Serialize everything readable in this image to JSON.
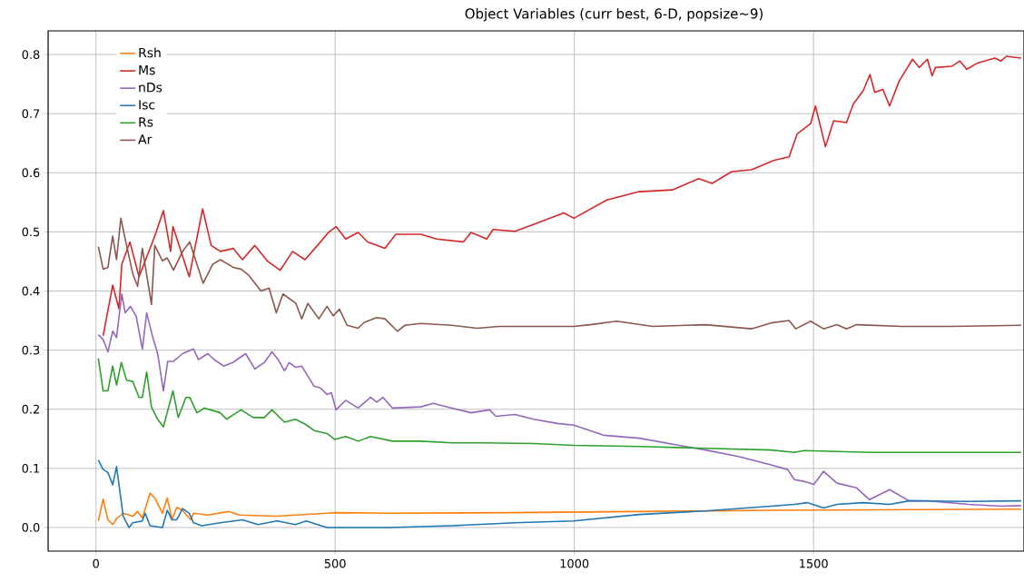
{
  "chart_data": {
    "type": "line",
    "title": "Object Variables (curr best, 6-D, popsize~9)",
    "xlim": [
      -100,
      1940
    ],
    "ylim": [
      -0.04,
      0.84
    ],
    "xticks": [
      0,
      500,
      1000,
      1500
    ],
    "yticks": [
      {
        "value": 0,
        "label": "0.0"
      },
      0.1,
      0.2,
      0.3,
      0.4,
      0.5,
      0.6,
      0.7,
      0.8
    ],
    "grid": true,
    "legend": "top left",
    "marker": "none",
    "line_style": "solid",
    "series": [
      {
        "name": "Rsh",
        "color": "#ff7f0e",
        "x": [
          5,
          15,
          25,
          35,
          44,
          57,
          77,
          87,
          97,
          113,
          123,
          139,
          149,
          159,
          169,
          181,
          198,
          204,
          234,
          277,
          300,
          378,
          483,
          502,
          614,
          862,
          1136,
          1411,
          1934
        ],
        "values": [
          0.011,
          0.048,
          0.013,
          0.005,
          0.016,
          0.024,
          0.019,
          0.027,
          0.016,
          0.058,
          0.05,
          0.024,
          0.05,
          0.013,
          0.034,
          0.029,
          0.013,
          0.024,
          0.021,
          0.027,
          0.021,
          0.019,
          0.024,
          0.025,
          0.024,
          0.025,
          0.027,
          0.029,
          0.031
        ]
      },
      {
        "name": "Ms",
        "color": "#d62728",
        "x": [
          15,
          35,
          48,
          54,
          71,
          90,
          123,
          141,
          156,
          161,
          195,
          223,
          241,
          260,
          287,
          306,
          332,
          358,
          385,
          411,
          437,
          463,
          486,
          502,
          522,
          548,
          568,
          604,
          627,
          679,
          712,
          768,
          784,
          817,
          830,
          876,
          923,
          978,
          999,
          1068,
          1136,
          1205,
          1260,
          1288,
          1329,
          1370,
          1418,
          1449,
          1466,
          1494,
          1504,
          1525,
          1542,
          1569,
          1583,
          1604,
          1618,
          1628,
          1645,
          1659,
          1679,
          1707,
          1721,
          1738,
          1748,
          1755,
          1789,
          1806,
          1820,
          1844,
          1879,
          1892,
          1903,
          1934
        ],
        "values": [
          0.324,
          0.41,
          0.37,
          0.445,
          0.483,
          0.424,
          0.493,
          0.536,
          0.467,
          0.509,
          0.424,
          0.539,
          0.477,
          0.467,
          0.472,
          0.453,
          0.477,
          0.451,
          0.435,
          0.467,
          0.453,
          0.477,
          0.499,
          0.509,
          0.488,
          0.499,
          0.483,
          0.472,
          0.496,
          0.496,
          0.488,
          0.483,
          0.499,
          0.488,
          0.504,
          0.501,
          0.515,
          0.532,
          0.523,
          0.554,
          0.568,
          0.571,
          0.59,
          0.582,
          0.602,
          0.605,
          0.621,
          0.627,
          0.666,
          0.683,
          0.713,
          0.644,
          0.688,
          0.685,
          0.716,
          0.739,
          0.766,
          0.736,
          0.741,
          0.713,
          0.755,
          0.792,
          0.778,
          0.792,
          0.764,
          0.778,
          0.78,
          0.789,
          0.775,
          0.786,
          0.794,
          0.789,
          0.797,
          0.794
        ]
      },
      {
        "name": "nDs",
        "color": "#9467bd",
        "x": [
          5,
          15,
          25,
          35,
          43,
          54,
          61,
          72,
          84,
          97,
          106,
          119,
          129,
          141,
          150,
          162,
          181,
          204,
          214,
          234,
          247,
          267,
          286,
          313,
          332,
          352,
          368,
          381,
          394,
          404,
          417,
          430,
          456,
          469,
          483,
          492,
          502,
          522,
          548,
          574,
          587,
          600,
          620,
          679,
          705,
          744,
          784,
          823,
          836,
          876,
          915,
          965,
          999,
          1061,
          1136,
          1219,
          1274,
          1343,
          1411,
          1446,
          1460,
          1480,
          1501,
          1521,
          1549,
          1590,
          1617,
          1659,
          1700,
          1741,
          1824,
          1892,
          1934
        ],
        "values": [
          0.326,
          0.318,
          0.297,
          0.332,
          0.321,
          0.395,
          0.363,
          0.374,
          0.358,
          0.302,
          0.363,
          0.321,
          0.294,
          0.231,
          0.281,
          0.281,
          0.294,
          0.302,
          0.284,
          0.294,
          0.284,
          0.273,
          0.279,
          0.294,
          0.268,
          0.279,
          0.297,
          0.284,
          0.265,
          0.279,
          0.271,
          0.273,
          0.239,
          0.236,
          0.225,
          0.228,
          0.199,
          0.215,
          0.202,
          0.22,
          0.212,
          0.22,
          0.202,
          0.204,
          0.21,
          0.202,
          0.194,
          0.199,
          0.188,
          0.191,
          0.183,
          0.176,
          0.173,
          0.156,
          0.151,
          0.139,
          0.131,
          0.12,
          0.106,
          0.098,
          0.081,
          0.078,
          0.073,
          0.095,
          0.075,
          0.067,
          0.047,
          0.064,
          0.045,
          0.045,
          0.039,
          0.036,
          0.037
        ]
      },
      {
        "name": "Isc",
        "color": "#1f77b4",
        "x": [
          5,
          15,
          25,
          35,
          43,
          57,
          69,
          77,
          97,
          103,
          113,
          139,
          149,
          159,
          169,
          181,
          195,
          204,
          221,
          260,
          306,
          339,
          378,
          417,
          440,
          463,
          483,
          614,
          744,
          876,
          999,
          1136,
          1274,
          1411,
          1460,
          1487,
          1521,
          1549,
          1604,
          1659,
          1700,
          1824,
          1934
        ],
        "values": [
          0.114,
          0.098,
          0.093,
          0.072,
          0.103,
          0.019,
          0.0,
          0.008,
          0.011,
          0.024,
          0.003,
          0.0,
          0.029,
          0.013,
          0.013,
          0.032,
          0.024,
          0.008,
          0.003,
          0.008,
          0.013,
          0.005,
          0.011,
          0.005,
          0.011,
          0.005,
          0.0,
          0.0,
          0.003,
          0.008,
          0.011,
          0.022,
          0.028,
          0.036,
          0.039,
          0.042,
          0.033,
          0.039,
          0.042,
          0.039,
          0.045,
          0.044,
          0.045
        ]
      },
      {
        "name": "Rs",
        "color": "#2ca02c",
        "x": [
          5,
          15,
          25,
          35,
          43,
          53,
          64,
          77,
          90,
          97,
          106,
          116,
          129,
          141,
          161,
          172,
          188,
          196,
          211,
          227,
          260,
          273,
          303,
          329,
          352,
          368,
          394,
          417,
          437,
          456,
          483,
          499,
          522,
          548,
          574,
          620,
          679,
          744,
          810,
          915,
          999,
          1136,
          1274,
          1411,
          1460,
          1480,
          1617,
          1934
        ],
        "values": [
          0.286,
          0.231,
          0.231,
          0.273,
          0.241,
          0.279,
          0.249,
          0.247,
          0.22,
          0.22,
          0.263,
          0.204,
          0.183,
          0.17,
          0.231,
          0.186,
          0.22,
          0.22,
          0.194,
          0.202,
          0.194,
          0.183,
          0.199,
          0.186,
          0.186,
          0.199,
          0.178,
          0.183,
          0.175,
          0.164,
          0.159,
          0.149,
          0.154,
          0.146,
          0.154,
          0.146,
          0.146,
          0.143,
          0.143,
          0.142,
          0.139,
          0.137,
          0.134,
          0.131,
          0.127,
          0.13,
          0.127,
          0.127
        ]
      },
      {
        "name": "Ar",
        "color": "#8c564b",
        "x": [
          5,
          15,
          25,
          35,
          43,
          52,
          64,
          77,
          87,
          97,
          110,
          116,
          123,
          139,
          149,
          162,
          181,
          196,
          224,
          244,
          260,
          287,
          303,
          319,
          345,
          362,
          377,
          391,
          418,
          430,
          443,
          466,
          483,
          496,
          509,
          525,
          548,
          561,
          587,
          604,
          630,
          646,
          679,
          744,
          797,
          843,
          916,
          999,
          1033,
          1088,
          1164,
          1274,
          1370,
          1411,
          1449,
          1463,
          1494,
          1521,
          1549,
          1569,
          1590,
          1686,
          1789,
          1934
        ],
        "values": [
          0.475,
          0.437,
          0.44,
          0.493,
          0.453,
          0.523,
          0.477,
          0.429,
          0.408,
          0.472,
          0.408,
          0.377,
          0.477,
          0.451,
          0.456,
          0.435,
          0.467,
          0.483,
          0.413,
          0.445,
          0.453,
          0.44,
          0.437,
          0.427,
          0.4,
          0.405,
          0.363,
          0.395,
          0.379,
          0.353,
          0.379,
          0.353,
          0.374,
          0.358,
          0.369,
          0.342,
          0.337,
          0.347,
          0.355,
          0.353,
          0.332,
          0.342,
          0.345,
          0.342,
          0.337,
          0.34,
          0.34,
          0.34,
          0.343,
          0.349,
          0.34,
          0.343,
          0.336,
          0.346,
          0.35,
          0.336,
          0.349,
          0.336,
          0.343,
          0.336,
          0.343,
          0.34,
          0.34,
          0.342
        ]
      }
    ]
  }
}
